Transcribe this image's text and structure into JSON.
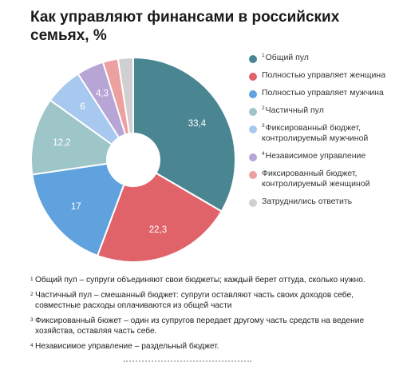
{
  "chart_data": {
    "type": "donut",
    "title": "Как управляют финансами в российских семьях, %",
    "categories": [
      "Общий пул",
      "Полностью управляет женщина",
      "Полностью управляет мужчина",
      "Частичный пул",
      "Фиксированный бюджет, контролируемый мужчиной",
      "Независимое управление",
      "Фиксированный бюджет, контролируемый женщиной",
      "Затруднились ответить"
    ],
    "values": [
      33.4,
      22.3,
      17,
      12.2,
      6,
      4.3,
      2.4,
      2.4
    ],
    "value_labels": [
      "33,4",
      "22,3",
      "17",
      "12,2",
      "6",
      "4,3",
      "",
      ""
    ],
    "colors": [
      "#4a8592",
      "#e0636a",
      "#5fa2de",
      "#9ec5c8",
      "#a7c9ef",
      "#b7a5d6",
      "#eca0a0",
      "#d0d0d0"
    ],
    "legend_position": "right"
  },
  "legend": [
    {
      "sup": "1",
      "label": "Общий пул"
    },
    {
      "sup": "",
      "label": "Полностью управляет женщина"
    },
    {
      "sup": "",
      "label": "Полностью управляет мужчина"
    },
    {
      "sup": "2",
      "label": "Частичный пул"
    },
    {
      "sup": "3",
      "label": "Фиксированный бюджет, контролируемый мужчиной"
    },
    {
      "sup": "4",
      "label": "Независимое управление"
    },
    {
      "sup": "",
      "label": "Фиксированный бюджет, контролируемый женщиной"
    },
    {
      "sup": "",
      "label": "Затруднились ответить"
    }
  ],
  "notes": [
    {
      "num": "1",
      "text": "Общий пул – супруги объединяют свои бюджеты; каждый берет оттуда, сколько нужно."
    },
    {
      "num": "2",
      "text": "Частичный пул – смешанный бюджет: супруги оставляют часть своих доходов себе, совместные расходы оплачиваются из общей части"
    },
    {
      "num": "3",
      "text": "Фиксированный бюжет – один из супругов передает другому часть средств на ведение хозяйства, оставляя часть себе."
    },
    {
      "num": "4",
      "text": "Независимое управление – раздельный бюджет."
    }
  ]
}
